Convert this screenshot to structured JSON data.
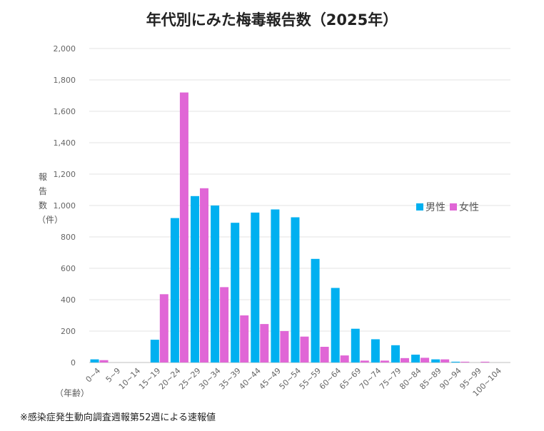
{
  "chart_data": {
    "type": "bar",
    "title": "年代別にみた梅毒報告数（2025年）",
    "ylabel": "報告数（件）",
    "xlabel": "（年齢）",
    "ylim": [
      0,
      2000
    ],
    "yticks": [
      "2,000",
      "1,800",
      "1,600",
      "1,400",
      "1,200",
      "1,000",
      "800",
      "600",
      "400",
      "200",
      "0"
    ],
    "categories": [
      "0~4",
      "5~9",
      "10~14",
      "15~19",
      "20~24",
      "25~29",
      "30~34",
      "35~39",
      "40~44",
      "45~49",
      "50~54",
      "55~59",
      "60~64",
      "65~69",
      "70~74",
      "75~79",
      "80~84",
      "85~89",
      "90~94",
      "95~99",
      "100~104"
    ],
    "series": [
      {
        "name": "男性",
        "color": "#00b0f0",
        "values": [
          20,
          0,
          0,
          145,
          920,
          1060,
          1000,
          890,
          955,
          975,
          925,
          660,
          475,
          215,
          148,
          110,
          50,
          20,
          5,
          0,
          0
        ]
      },
      {
        "name": "女性",
        "color": "#e066d6",
        "values": [
          15,
          0,
          0,
          435,
          1720,
          1110,
          480,
          300,
          245,
          200,
          165,
          100,
          45,
          12,
          12,
          28,
          30,
          20,
          5,
          5,
          0
        ]
      }
    ],
    "grid": true,
    "legend_position": "right"
  },
  "footnote": "※感染症発生動向調査週報第52週による速報値"
}
